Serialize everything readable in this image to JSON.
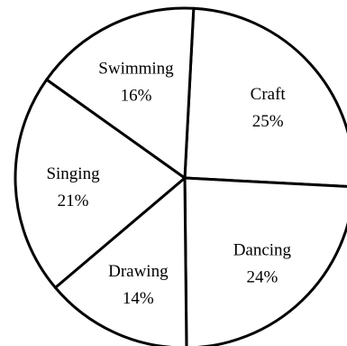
{
  "chart_data": {
    "type": "pie",
    "title": "",
    "slices": [
      {
        "label": "Craft",
        "value": 25,
        "value_label": "25%"
      },
      {
        "label": "Dancing",
        "value": 24,
        "value_label": "24%"
      },
      {
        "label": "Drawing",
        "value": 14,
        "value_label": "14%"
      },
      {
        "label": "Singing",
        "value": 21,
        "value_label": "21%"
      },
      {
        "label": "Swimming",
        "value": 16,
        "value_label": "16%"
      }
    ],
    "colors": {
      "fill": "#ffffff",
      "stroke": "#000000"
    },
    "legend": "none"
  }
}
